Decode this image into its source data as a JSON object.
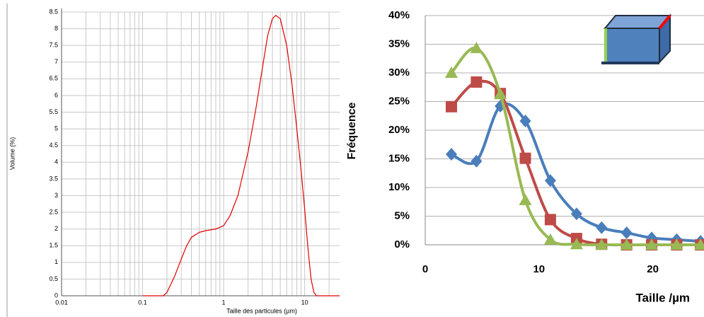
{
  "chart_data": [
    {
      "type": "line",
      "xscale": "log",
      "ylabel": "Volume (%)",
      "xlabel": "Taille des particules (µm)",
      "x": [
        0.1,
        0.18,
        0.2,
        0.25,
        0.3,
        0.35,
        0.4,
        0.5,
        0.6,
        0.8,
        1.0,
        1.2,
        1.5,
        2.0,
        2.5,
        3.0,
        3.5,
        4.0,
        4.4,
        5.0,
        6.0,
        7.0,
        8.0,
        9.0,
        10,
        11,
        12,
        13,
        14,
        27
      ],
      "series": [
        {
          "color": "#e00000",
          "values": [
            0,
            0,
            0.1,
            0.6,
            1.1,
            1.5,
            1.75,
            1.9,
            1.95,
            2.0,
            2.1,
            2.4,
            3.0,
            4.3,
            5.6,
            6.8,
            7.8,
            8.3,
            8.4,
            8.3,
            7.5,
            6.3,
            5.0,
            3.8,
            2.6,
            1.4,
            0.5,
            0.1,
            0,
            0
          ]
        }
      ],
      "xlim": [
        0.01,
        27
      ],
      "xticks": [
        0.01,
        0.1,
        1,
        10
      ],
      "ylim": [
        0,
        8.5
      ],
      "yticks": [
        0,
        0.5,
        1,
        1.5,
        2,
        2.5,
        3,
        3.5,
        4,
        4.5,
        5,
        5.5,
        6,
        6.5,
        7,
        7.5,
        8,
        8.5
      ],
      "grid": true
    },
    {
      "type": "line",
      "smooth": true,
      "ylabel": "Fréquence",
      "xlabel": "Taille /µm",
      "x": [
        2.3,
        4.5,
        6.6,
        8.8,
        11.0,
        13.3,
        15.5,
        17.7,
        19.9,
        22.1,
        24.2
      ],
      "series": [
        {
          "color": "#4a7ebb",
          "marker": "diamond",
          "values": [
            15.8,
            14.6,
            24.2,
            21.6,
            11.2,
            5.4,
            3.0,
            2.1,
            1.2,
            0.9,
            0.6
          ]
        },
        {
          "color": "#be4b48",
          "marker": "square",
          "values": [
            24.1,
            28.4,
            26.4,
            15.1,
            4.4,
            1.1,
            0.1,
            0,
            0,
            0,
            0
          ]
        },
        {
          "color": "#98b954",
          "marker": "triangle",
          "values": [
            30.0,
            34.3,
            26.3,
            7.8,
            0.9,
            0.1,
            0,
            0,
            0,
            0,
            0
          ]
        }
      ],
      "xlim": [
        0,
        24.5
      ],
      "xticks": [
        0,
        10,
        20
      ],
      "ylim": [
        0,
        40
      ],
      "yticks": [
        {
          "value": 0,
          "label": "0%"
        },
        {
          "value": 5,
          "label": "5%"
        },
        {
          "value": 10,
          "label": "10%"
        },
        {
          "value": 15,
          "label": "15%"
        },
        {
          "value": 20,
          "label": "20%"
        },
        {
          "value": 25,
          "label": "25%"
        },
        {
          "value": 30,
          "label": "30%"
        },
        {
          "value": 35,
          "label": "35%"
        },
        {
          "value": 40,
          "label": "40%"
        }
      ],
      "grid": true
    }
  ]
}
